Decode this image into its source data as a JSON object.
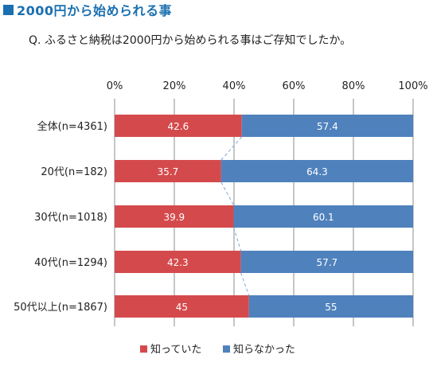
{
  "header": {
    "title": "2000円から始められる事",
    "question": "Q. ふるさと納税は2000円から始められる事はご存知でしたか。"
  },
  "chart_data": {
    "type": "bar",
    "orientation": "horizontal",
    "stacked": true,
    "percent_stacked": true,
    "title": "",
    "xlabel": "",
    "ylabel": "",
    "xlim": [
      0,
      100
    ],
    "tick_labels": [
      "0%",
      "20%",
      "40%",
      "60%",
      "80%",
      "100%"
    ],
    "categories": [
      "全体(n=4361)",
      "20代(n=182)",
      "30代(n=1018)",
      "40代(n=1294)",
      "50代以上(n=1867)"
    ],
    "series": [
      {
        "name": "知っていた",
        "values": [
          42.6,
          35.7,
          39.9,
          42.3,
          45
        ],
        "labels": [
          "42.6",
          "35.7",
          "39.9",
          "42.3",
          "45"
        ],
        "color": "#d44a4c"
      },
      {
        "name": "知らなかった",
        "values": [
          57.4,
          64.3,
          60.1,
          57.7,
          55
        ],
        "labels": [
          "57.4",
          "64.3",
          "60.1",
          "57.7",
          "55"
        ],
        "color": "#4f81bd"
      }
    ],
    "series_lines": true,
    "grid": true,
    "legend_position": "bottom"
  },
  "colors": {
    "accent": "#1a6fb0",
    "known": "#d44a4c",
    "unknown": "#4f81bd",
    "gridline": "#8c8c8c",
    "series_line": "#7fa7d8"
  }
}
